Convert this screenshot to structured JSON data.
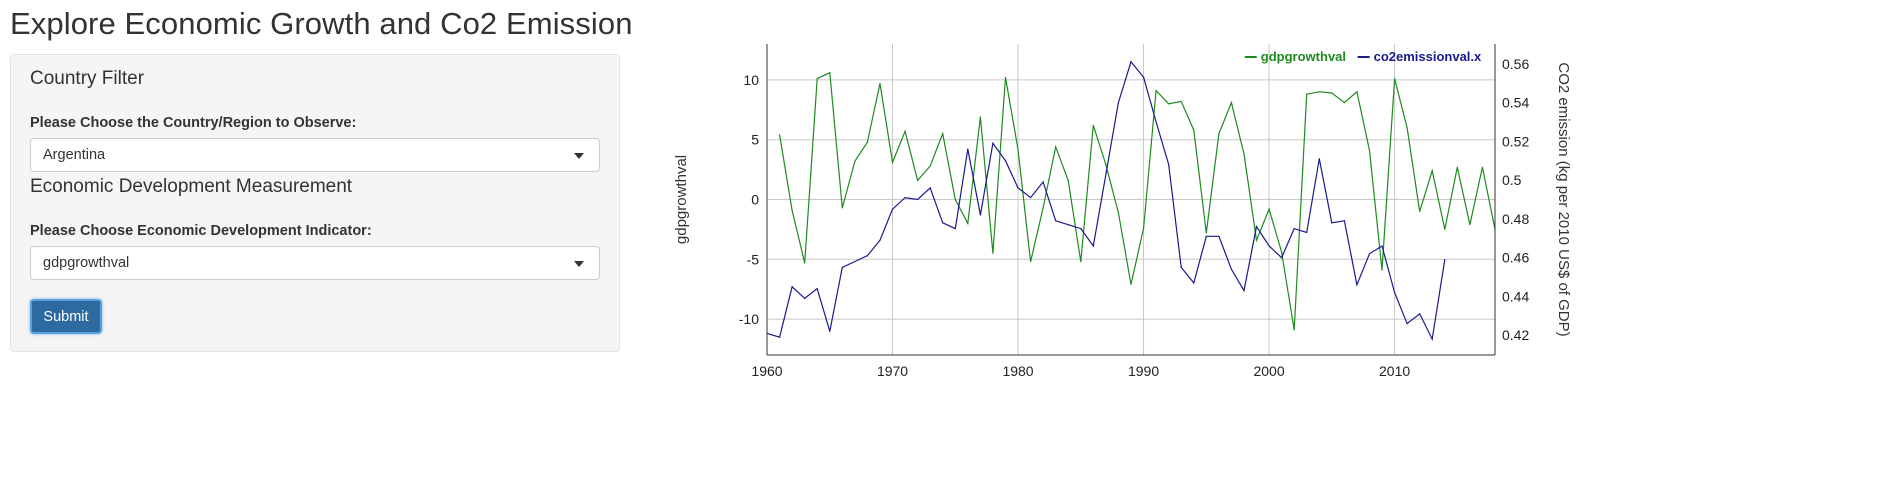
{
  "page": {
    "title": "Explore Economic Growth and Co2 Emission"
  },
  "sidebar": {
    "country_section_title": "Country Filter",
    "country_label": "Please Choose the Country/Region to Observe:",
    "country_value": "Argentina",
    "indicator_section_title": "Economic Development Measurement",
    "indicator_label": "Please Choose Economic Development Indicator:",
    "indicator_value": "gdpgrowthval",
    "submit_label": "Submit"
  },
  "colors": {
    "gdp": "#1f8a1f",
    "co2": "#1a1a8c",
    "button": "#2c6aa0"
  },
  "icons": {
    "dropdown": "chevron-down-icon"
  },
  "chart_data": {
    "type": "line",
    "xlabel": "",
    "ylabel": "gdpgrowthval",
    "y2label": "CO2 emission (kg per 2010 US$ of GDP)",
    "xlim": [
      1960,
      2018
    ],
    "ylim": [
      -13,
      13
    ],
    "y2lim": [
      0.4098,
      0.5702
    ],
    "x_ticks": [
      1960,
      1970,
      1980,
      1990,
      2000,
      2010
    ],
    "y_ticks": [
      -10,
      -5,
      0,
      5,
      10
    ],
    "y2_ticks": [
      0.42,
      0.44,
      0.46,
      0.48,
      0.5,
      0.52,
      0.54,
      0.56
    ],
    "y2_tick_labels": [
      "0.42",
      "0.44",
      "0.46",
      "0.48",
      "0.5",
      "0.52",
      "0.54",
      "0.56"
    ],
    "grid": true,
    "legend_position": "top-right",
    "series": [
      {
        "name": "gdpgrowthval",
        "axis": "left",
        "color": "#1f8a1f",
        "x": [
          1961,
          1962,
          1963,
          1964,
          1965,
          1966,
          1967,
          1968,
          1969,
          1970,
          1971,
          1972,
          1973,
          1974,
          1975,
          1976,
          1977,
          1978,
          1979,
          1980,
          1981,
          1982,
          1983,
          1984,
          1985,
          1986,
          1987,
          1988,
          1989,
          1990,
          1991,
          1992,
          1993,
          1994,
          1995,
          1996,
          1997,
          1998,
          1999,
          2000,
          2001,
          2002,
          2003,
          2004,
          2005,
          2006,
          2007,
          2008,
          2009,
          2010,
          2011,
          2012,
          2013,
          2014,
          2015,
          2016,
          2017,
          2018
        ],
        "values": [
          5.4,
          -0.9,
          -5.3,
          10.1,
          10.6,
          -0.7,
          3.2,
          4.8,
          9.7,
          3.1,
          5.7,
          1.6,
          2.8,
          5.5,
          0.0,
          -2.0,
          6.9,
          -4.5,
          10.2,
          4.2,
          -5.2,
          -0.7,
          4.4,
          1.6,
          -5.2,
          6.2,
          2.9,
          -1.1,
          -7.1,
          -2.4,
          9.1,
          8.0,
          8.2,
          5.8,
          -2.8,
          5.5,
          8.1,
          3.8,
          -3.4,
          -0.8,
          -4.4,
          -10.9,
          8.8,
          9.0,
          8.9,
          8.1,
          9.0,
          4.1,
          -5.9,
          10.1,
          6.0,
          -1.0,
          2.4,
          -2.5,
          2.7,
          -2.1,
          2.7,
          -2.5
        ]
      },
      {
        "name": "co2emissionval.x",
        "axis": "right",
        "color": "#1a1a8c",
        "x": [
          1960,
          1961,
          1962,
          1963,
          1964,
          1965,
          1966,
          1967,
          1968,
          1969,
          1970,
          1971,
          1972,
          1973,
          1974,
          1975,
          1976,
          1977,
          1978,
          1979,
          1980,
          1981,
          1982,
          1983,
          1984,
          1985,
          1986,
          1987,
          1988,
          1989,
          1990,
          1991,
          1992,
          1993,
          1994,
          1995,
          1996,
          1997,
          1998,
          1999,
          2000,
          2001,
          2002,
          2003,
          2004,
          2005,
          2006,
          2007,
          2008,
          2009,
          2010,
          2011,
          2012,
          2013,
          2014
        ],
        "values": [
          0.421,
          0.419,
          0.445,
          0.439,
          0.444,
          0.422,
          0.455,
          0.458,
          0.461,
          0.469,
          0.485,
          0.491,
          0.49,
          0.496,
          0.478,
          0.475,
          0.516,
          0.482,
          0.519,
          0.51,
          0.496,
          0.491,
          0.499,
          0.479,
          0.477,
          0.475,
          0.466,
          0.503,
          0.54,
          0.561,
          0.553,
          0.53,
          0.508,
          0.455,
          0.447,
          0.471,
          0.471,
          0.454,
          0.443,
          0.476,
          0.466,
          0.46,
          0.475,
          0.473,
          0.511,
          0.478,
          0.479,
          0.446,
          0.462,
          0.466,
          0.442,
          0.426,
          0.431,
          0.418,
          0.459
        ]
      }
    ]
  }
}
